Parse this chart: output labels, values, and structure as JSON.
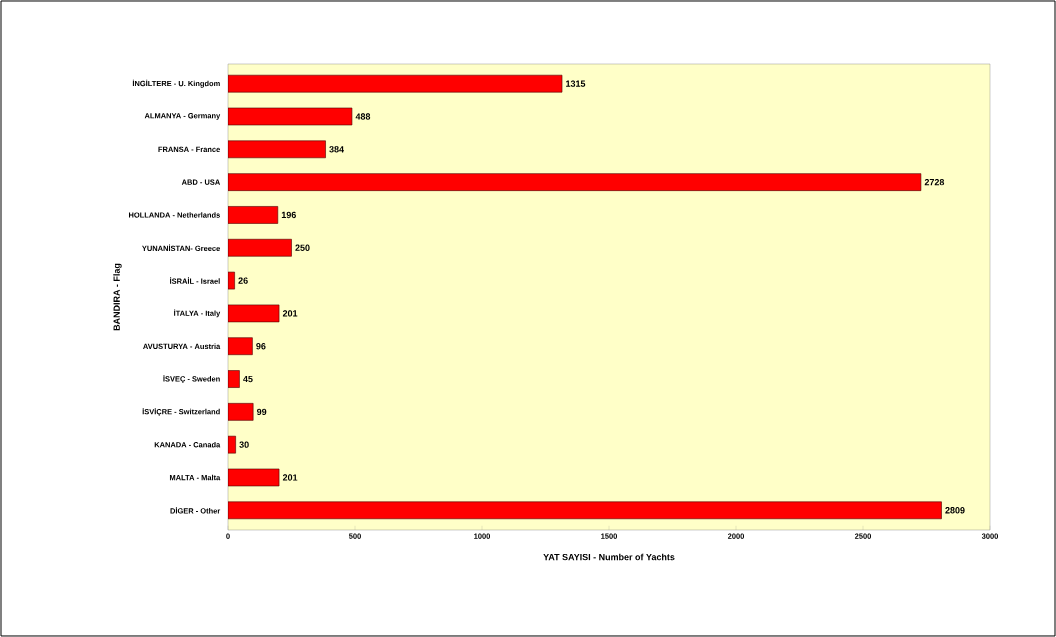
{
  "chart_data": {
    "type": "bar",
    "orientation": "horizontal",
    "xlabel": "YAT SAYISI - Number of Yachts",
    "ylabel": "BANDIRA - Flag",
    "categories": [
      "İNGİLTERE - U. Kingdom",
      "ALMANYA - Germany",
      "FRANSA - France",
      "ABD - USA",
      "HOLLANDA - Netherlands",
      "YUNANİSTAN- Greece",
      "İSRAİL - Israel",
      "İTALYA - Italy",
      "AVUSTURYA - Austria",
      "İSVEÇ - Sweden",
      "İSVİÇRE - Switzerland",
      "KANADA - Canada",
      "MALTA - Malta",
      "DİGER - Other"
    ],
    "values": [
      1315,
      488,
      384,
      2728,
      196,
      250,
      26,
      201,
      96,
      45,
      99,
      30,
      201,
      2809
    ],
    "color": "#ff0000",
    "data_labels": true,
    "xlim": [
      0,
      3000
    ],
    "xticks": [
      0,
      500,
      1000,
      1500,
      2000,
      2500,
      3000
    ]
  }
}
